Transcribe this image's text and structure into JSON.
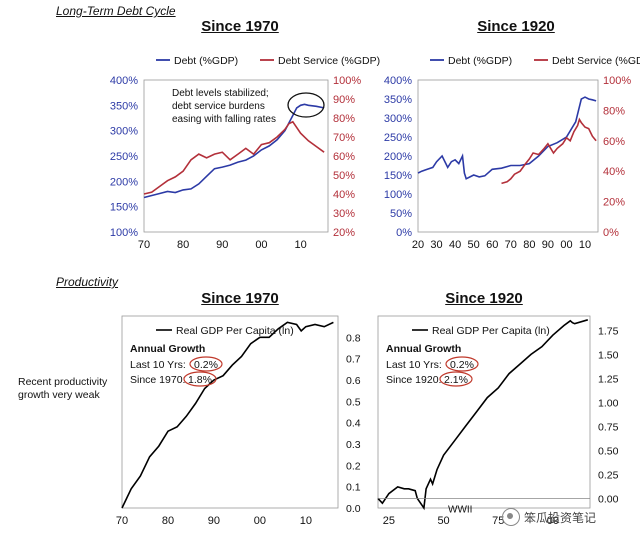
{
  "sections": {
    "debt": "Long-Term Debt Cycle",
    "productivity": "Productivity"
  },
  "side_note": {
    "line1": "Recent productivity",
    "line2": "growth very weak"
  },
  "watermark": "笨瓜投资笔记",
  "colors": {
    "debt": "#2c3aa6",
    "service": "#b3303a",
    "gdp": "#000000",
    "circle": "#c0392b"
  },
  "chart_data": [
    {
      "id": "debt1970",
      "type": "line",
      "title": "Since 1970",
      "legend": [
        "Debt (%GDP)",
        "Debt Service (%GDP)"
      ],
      "annotation": [
        "Debt levels stabilized;",
        "debt service burdens",
        "easing with falling rates"
      ],
      "x_ticks": [
        "70",
        "80",
        "90",
        "00",
        "10"
      ],
      "xlim": [
        1970,
        2017
      ],
      "ylim_left": [
        100,
        400
      ],
      "ylim_right": [
        20,
        100
      ],
      "y_left_ticks": [
        "100%",
        "150%",
        "200%",
        "250%",
        "300%",
        "350%",
        "400%"
      ],
      "y_right_ticks": [
        "20%",
        "30%",
        "40%",
        "50%",
        "60%",
        "70%",
        "80%",
        "90%",
        "100%"
      ],
      "series": [
        {
          "name": "Debt (%GDP)",
          "axis": "left",
          "x": [
            1970,
            1972,
            1974,
            1976,
            1978,
            1980,
            1982,
            1984,
            1986,
            1988,
            1990,
            1992,
            1994,
            1996,
            1998,
            2000,
            2002,
            2004,
            2006,
            2008,
            2009,
            2010,
            2011,
            2012,
            2014,
            2016
          ],
          "y": [
            168,
            172,
            176,
            180,
            178,
            183,
            185,
            195,
            210,
            225,
            228,
            232,
            238,
            242,
            250,
            262,
            270,
            282,
            300,
            330,
            345,
            350,
            352,
            350,
            348,
            345
          ]
        },
        {
          "name": "Debt Service (%GDP)",
          "axis": "right",
          "x": [
            1970,
            1972,
            1974,
            1976,
            1978,
            1980,
            1982,
            1984,
            1986,
            1988,
            1990,
            1992,
            1994,
            1996,
            1998,
            2000,
            2002,
            2004,
            2006,
            2007,
            2008,
            2010,
            2012,
            2014,
            2016
          ],
          "y": [
            40,
            41,
            44,
            47,
            49,
            52,
            58,
            61,
            59,
            61,
            62,
            58,
            61,
            64,
            61,
            66,
            67,
            70,
            74,
            77,
            78,
            72,
            68,
            65,
            62
          ]
        }
      ]
    },
    {
      "id": "debt1920",
      "type": "line",
      "title": "Since 1920",
      "legend": [
        "Debt (%GDP)",
        "Debt Service (%GDP)"
      ],
      "x_ticks": [
        "20",
        "30",
        "40",
        "50",
        "60",
        "70",
        "80",
        "90",
        "00",
        "10"
      ],
      "xlim": [
        1920,
        2017
      ],
      "ylim_left": [
        0,
        400
      ],
      "ylim_right": [
        0,
        100
      ],
      "y_left_ticks": [
        "0%",
        "50%",
        "100%",
        "150%",
        "200%",
        "250%",
        "300%",
        "350%",
        "400%"
      ],
      "y_right_ticks": [
        "0%",
        "20%",
        "40%",
        "60%",
        "80%",
        "100%"
      ],
      "series": [
        {
          "name": "Debt (%GDP)",
          "axis": "left",
          "x": [
            1920,
            1922,
            1925,
            1928,
            1930,
            1933,
            1936,
            1938,
            1940,
            1942,
            1944,
            1945,
            1946,
            1948,
            1950,
            1953,
            1956,
            1960,
            1965,
            1970,
            1975,
            1980,
            1985,
            1990,
            1995,
            2000,
            2005,
            2008,
            2010,
            2012,
            2014,
            2016
          ],
          "y": [
            155,
            160,
            165,
            170,
            185,
            200,
            170,
            185,
            190,
            180,
            200,
            155,
            140,
            145,
            150,
            145,
            148,
            165,
            168,
            175,
            175,
            180,
            200,
            225,
            235,
            250,
            290,
            350,
            355,
            350,
            348,
            345
          ]
        },
        {
          "name": "Debt Service (%GDP)",
          "axis": "right",
          "x": [
            1965,
            1968,
            1970,
            1972,
            1975,
            1978,
            1980,
            1982,
            1985,
            1988,
            1990,
            1993,
            1995,
            1998,
            2000,
            2002,
            2004,
            2006,
            2007,
            2008,
            2010,
            2012,
            2014,
            2016
          ],
          "y": [
            32,
            33,
            35,
            38,
            40,
            45,
            48,
            52,
            51,
            55,
            58,
            52,
            55,
            58,
            62,
            60,
            66,
            70,
            74,
            72,
            69,
            68,
            63,
            60
          ]
        }
      ]
    },
    {
      "id": "gdp1970",
      "type": "line",
      "title": "Since 1970",
      "legend": [
        "Real GDP Per Capita (ln)"
      ],
      "growth_title": "Annual Growth",
      "growth_rows": [
        {
          "label": "Last 10 Yrs:",
          "value": "0.2%"
        },
        {
          "label": "Since 1970:",
          "value": "1.8%"
        }
      ],
      "x_ticks": [
        "70",
        "80",
        "90",
        "00",
        "10"
      ],
      "xlim": [
        1970,
        2017
      ],
      "ylim": [
        0,
        0.9
      ],
      "y_ticks": [
        "0.0",
        "0.1",
        "0.2",
        "0.3",
        "0.4",
        "0.5",
        "0.6",
        "0.7",
        "0.8"
      ],
      "series": [
        {
          "name": "Real GDP Per Capita (ln)",
          "axis": "left",
          "x": [
            1970,
            1972,
            1974,
            1976,
            1978,
            1980,
            1982,
            1984,
            1986,
            1988,
            1990,
            1992,
            1994,
            1996,
            1998,
            2000,
            2002,
            2004,
            2006,
            2008,
            2009,
            2010,
            2012,
            2014,
            2016
          ],
          "y": [
            0.0,
            0.09,
            0.15,
            0.24,
            0.29,
            0.36,
            0.38,
            0.43,
            0.49,
            0.56,
            0.6,
            0.62,
            0.67,
            0.71,
            0.77,
            0.8,
            0.8,
            0.84,
            0.87,
            0.86,
            0.83,
            0.85,
            0.86,
            0.85,
            0.87
          ]
        }
      ]
    },
    {
      "id": "gdp1920",
      "type": "line",
      "title": "Since 1920",
      "legend": [
        "Real GDP Per Capita (ln)"
      ],
      "growth_title": "Annual Growth",
      "growth_rows": [
        {
          "label": "Last 10 Yrs:",
          "value": "0.2%"
        },
        {
          "label": "Since 1920:",
          "value": "2.1%"
        }
      ],
      "annotation_label": "WWII",
      "x_ticks": [
        "25",
        "50",
        "75",
        "00"
      ],
      "xlim": [
        1920,
        2017
      ],
      "ylim": [
        -0.1,
        1.9
      ],
      "y_ticks": [
        "0.00",
        "0.25",
        "0.50",
        "0.75",
        "1.00",
        "1.25",
        "1.50",
        "1.75"
      ],
      "series": [
        {
          "name": "Real GDP Per Capita (ln)",
          "axis": "left",
          "x": [
            1920,
            1922,
            1925,
            1929,
            1932,
            1934,
            1937,
            1938,
            1941,
            1942,
            1944,
            1945,
            1947,
            1950,
            1955,
            1960,
            1965,
            1970,
            1975,
            1980,
            1985,
            1990,
            1995,
            2000,
            2005,
            2008,
            2009,
            2010,
            2016
          ],
          "y": [
            0.0,
            -0.05,
            0.05,
            0.12,
            0.1,
            0.1,
            0.08,
            0.0,
            -0.1,
            0.1,
            0.2,
            0.15,
            0.3,
            0.45,
            0.6,
            0.75,
            0.9,
            1.05,
            1.15,
            1.3,
            1.4,
            1.5,
            1.58,
            1.7,
            1.8,
            1.85,
            1.83,
            1.82,
            1.86
          ]
        }
      ]
    }
  ]
}
